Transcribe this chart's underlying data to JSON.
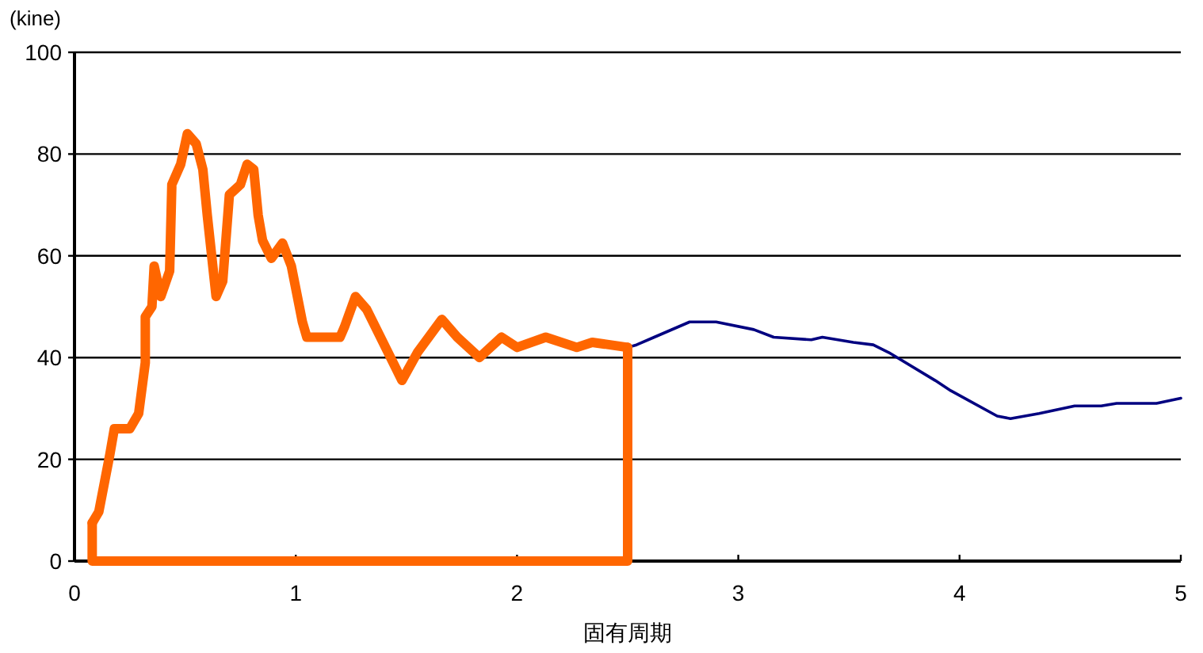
{
  "chart_data": {
    "type": "line",
    "xlabel": "固有周期",
    "ylabel": "(kine)",
    "xlim": [
      0,
      5
    ],
    "ylim": [
      0,
      100
    ],
    "xticks": [
      0,
      1,
      2,
      3,
      4,
      5
    ],
    "yticks": [
      0,
      20,
      40,
      60,
      80,
      100
    ],
    "grid": "y",
    "line_style": "solid",
    "series": [
      {
        "color": "#000080",
        "x": [
          2.5,
          2.54,
          2.62,
          2.78,
          2.9,
          3.07,
          3.16,
          3.33,
          3.38,
          3.52,
          3.61,
          3.68,
          3.89,
          3.96,
          4.17,
          4.23,
          4.36,
          4.52,
          4.64,
          4.71,
          4.89,
          5.0
        ],
        "values": [
          42,
          42.5,
          44,
          47,
          47,
          45.5,
          44,
          43.5,
          44,
          43,
          42.5,
          41,
          35.5,
          33.5,
          28.5,
          28,
          29,
          30.5,
          30.5,
          31,
          31,
          32
        ]
      },
      {
        "color": "#ff6600",
        "x": [
          0.08,
          0.11,
          0.16,
          0.18,
          0.25,
          0.29,
          0.32,
          0.32,
          0.35,
          0.36,
          0.39,
          0.43,
          0.44,
          0.48,
          0.51,
          0.55,
          0.58,
          0.6,
          0.64,
          0.67,
          0.7,
          0.75,
          0.78,
          0.81,
          0.83,
          0.85,
          0.89,
          0.94,
          0.98,
          1.03,
          1.05,
          1.2,
          1.22,
          1.27,
          1.32,
          1.48,
          1.55,
          1.66,
          1.73,
          1.83,
          1.93,
          2.0,
          2.13,
          2.27,
          2.34,
          2.5
        ],
        "values": [
          7.5,
          9.7,
          21,
          26,
          26,
          29,
          39,
          48,
          50,
          58,
          52,
          57,
          74,
          78,
          84,
          82,
          77,
          68,
          52,
          55,
          72,
          74,
          78,
          77,
          68,
          63,
          59.5,
          62.5,
          58,
          47,
          44,
          44,
          46,
          52,
          49.5,
          35.5,
          41,
          47.5,
          44,
          40,
          44,
          42,
          44,
          42,
          43,
          42
        ]
      },
      {
        "color": "#ff6600",
        "x": [
          0.08,
          0.08,
          2.5,
          2.5
        ],
        "values": [
          7.5,
          0,
          0,
          42
        ]
      }
    ]
  }
}
